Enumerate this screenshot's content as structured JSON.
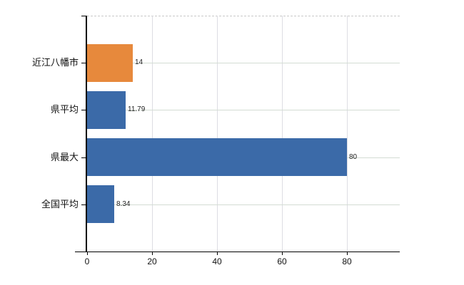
{
  "chart_data": {
    "type": "bar",
    "orientation": "horizontal",
    "categories": [
      "近江八幡市",
      "県平均",
      "県最大",
      "全国平均"
    ],
    "values": [
      14,
      11.79,
      80,
      8.34
    ],
    "value_labels": [
      "14",
      "11.79",
      "80",
      "8.34"
    ],
    "series_colors": [
      "#e7893c",
      "#3b6aa8",
      "#3b6aa8",
      "#3b6aa8"
    ],
    "xticks": [
      0,
      20,
      40,
      60,
      80
    ],
    "xtick_labels": [
      "0",
      "20",
      "40",
      "60",
      "80"
    ],
    "xlim": [
      0,
      96.3
    ],
    "grid": true,
    "legend_position": "none",
    "title": "",
    "xlabel": "",
    "ylabel": "",
    "colors": {
      "axis": "#000000",
      "vertical_grid": "#dddde3",
      "horizontal_grid": "#d3dcd3",
      "top_border": "#c9c9c9",
      "value_label_text": "#222222",
      "tick_label_text": "#111111",
      "background": "#ffffff"
    }
  }
}
